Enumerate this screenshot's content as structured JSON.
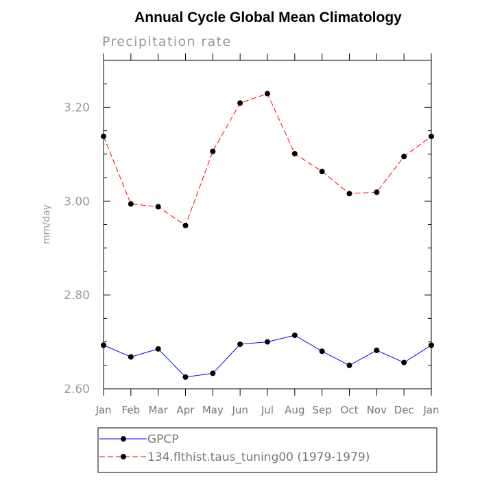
{
  "chart_data": {
    "type": "line",
    "title": "Annual Cycle Global Mean Climatology",
    "subtitle": "Precipitation rate",
    "xlabel": "",
    "ylabel": "mm/day",
    "categories": [
      "Jan",
      "Feb",
      "Mar",
      "Apr",
      "May",
      "Jun",
      "Jul",
      "Aug",
      "Sep",
      "Oct",
      "Nov",
      "Dec",
      "Jan"
    ],
    "ylim": [
      2.6,
      3.3
    ],
    "yticks": [
      2.6,
      2.8,
      3.0,
      3.2
    ],
    "ytick_labels": [
      "2.60",
      "2.80",
      "3.00",
      "3.20"
    ],
    "grid": false,
    "legend_position": "bottom",
    "series": [
      {
        "name": "GPCP",
        "color": "#0000ff",
        "style": "solid",
        "marker": "circle",
        "values": [
          2.693,
          2.668,
          2.685,
          2.625,
          2.633,
          2.695,
          2.7,
          2.714,
          2.68,
          2.65,
          2.682,
          2.656,
          2.693
        ]
      },
      {
        "name": "134.flthist.taus_tuning00 (1979-1979)",
        "color": "#ff0000",
        "style": "dashed",
        "marker": "circle",
        "values": [
          3.138,
          2.994,
          2.988,
          2.948,
          3.106,
          3.209,
          3.229,
          3.101,
          3.063,
          3.016,
          3.019,
          3.095,
          3.138
        ]
      }
    ]
  }
}
